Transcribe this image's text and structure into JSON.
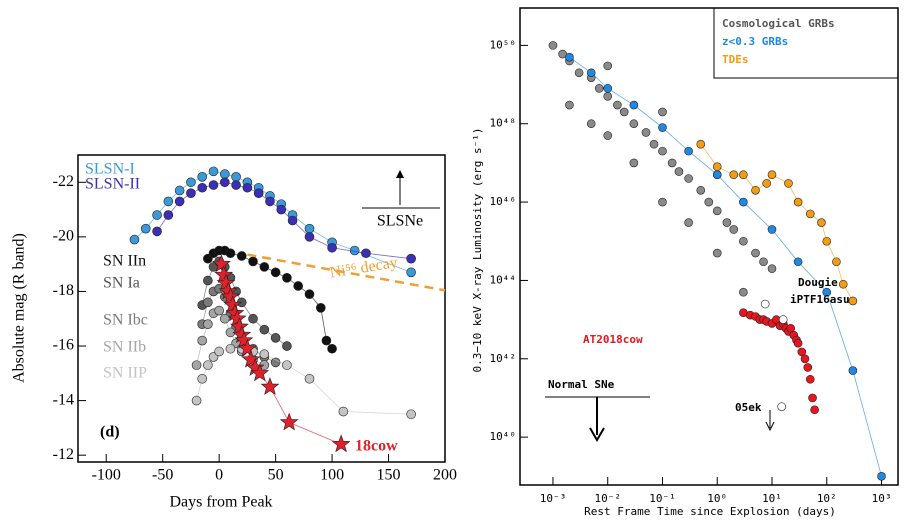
{
  "chart_data": [
    {
      "type": "line",
      "xlabel": "Days from Peak",
      "ylabel": "Absolute mag (R band)",
      "xlim": [
        -125,
        200
      ],
      "ylim": [
        -11.75,
        -23
      ],
      "xticks": [
        -100,
        -50,
        0,
        50,
        100,
        150,
        200
      ],
      "yticks": [
        -22,
        -20,
        -18,
        -16,
        -14,
        -12
      ],
      "annotations": [
        {
          "text": "SLSNe"
        },
        {
          "text": "(d)"
        }
      ],
      "series": [
        {
          "name": "SLSN-I",
          "color": "#3a9ad9",
          "marker": "circle",
          "x": [
            -75,
            -65,
            -55,
            -45,
            -35,
            -25,
            -15,
            -5,
            5,
            15,
            25,
            35,
            45,
            55,
            65,
            80,
            100,
            120,
            170
          ],
          "values": [
            -19.9,
            -20.3,
            -20.8,
            -21.3,
            -21.7,
            -22,
            -22.2,
            -22.4,
            -22.3,
            -22.2,
            -22,
            -21.8,
            -21.5,
            -21.2,
            -20.8,
            -20.3,
            -19.8,
            -19.5,
            -18.7
          ]
        },
        {
          "name": "SLSN-II",
          "color": "#3b2fb5",
          "marker": "circle",
          "x": [
            -55,
            -45,
            -35,
            -25,
            -15,
            -5,
            5,
            15,
            25,
            35,
            45,
            55,
            65,
            80,
            100,
            130,
            170
          ],
          "values": [
            -20.2,
            -20.8,
            -21.3,
            -21.6,
            -21.8,
            -21.9,
            -22,
            -21.9,
            -21.8,
            -21.6,
            -21.3,
            -21,
            -20.6,
            -20,
            -19.6,
            -19.4,
            -19.2
          ]
        },
        {
          "name": "SN IIn",
          "color": "#111111",
          "marker": "circle",
          "x": [
            -10,
            -5,
            0,
            5,
            10,
            20,
            30,
            40,
            50,
            60,
            70,
            80,
            90,
            95,
            100
          ],
          "values": [
            -19.2,
            -19.4,
            -19.5,
            -19.5,
            -19.4,
            -19.3,
            -19.1,
            -18.9,
            -18.7,
            -18.5,
            -18.2,
            -17.9,
            -17.4,
            -16.2,
            -15.9
          ]
        },
        {
          "name": "SN Ia",
          "color": "#555555",
          "marker": "circle",
          "x": [
            -15,
            -10,
            -5,
            0,
            5,
            10,
            15,
            20,
            30,
            40,
            50,
            60
          ],
          "values": [
            -17.5,
            -18.4,
            -18.9,
            -19.1,
            -18.9,
            -18.5,
            -18,
            -17.6,
            -17,
            -16.6,
            -16.3,
            -16
          ]
        },
        {
          "name": "SN Ibc",
          "color": "#7a7a7a",
          "marker": "circle",
          "x": [
            -15,
            -10,
            -5,
            0,
            5,
            10,
            15,
            20,
            30,
            40,
            50
          ],
          "values": [
            -16.8,
            -17.6,
            -18,
            -18.1,
            -17.8,
            -17.2,
            -16.7,
            -16.3,
            -15.9,
            -15.6,
            -15.4
          ]
        },
        {
          "name": "SN IIb",
          "color": "#a5a5a5",
          "marker": "circle",
          "x": [
            -20,
            -15,
            -10,
            -5,
            0,
            5,
            10,
            15,
            20,
            30,
            40
          ],
          "values": [
            -15.3,
            -16.2,
            -16.8,
            -17.2,
            -17.3,
            -17,
            -16.5,
            -16.1,
            -15.8,
            -15.5,
            -15.3
          ]
        },
        {
          "name": "SN IIP",
          "color": "#c4c4c4",
          "marker": "circle",
          "x": [
            -20,
            -15,
            -10,
            -5,
            0,
            10,
            20,
            30,
            40,
            60,
            80,
            110,
            170
          ],
          "values": [
            -14,
            -14.8,
            -15.3,
            -15.6,
            -15.8,
            -15.9,
            -15.9,
            -15.8,
            -15.7,
            -15.3,
            -14.8,
            -13.6,
            -13.5
          ]
        },
        {
          "name": "18cow",
          "color": "#e0202a",
          "marker": "star",
          "x": [
            2,
            4,
            6,
            8,
            10,
            12,
            14,
            16,
            18,
            20,
            22,
            25,
            28,
            32,
            36,
            45,
            62,
            108
          ],
          "values": [
            -19,
            -18.6,
            -18.3,
            -18,
            -17.8,
            -17.5,
            -17.2,
            -17,
            -16.7,
            -16.4,
            -16.2,
            -15.9,
            -15.5,
            -15.2,
            -15,
            -14.5,
            -13.2,
            -12.4
          ]
        },
        {
          "name": "Ni⁵⁶ decay",
          "color": "#f0a030",
          "marker": "none",
          "dash": true,
          "x": [
            25,
            200
          ],
          "values": [
            -19.35,
            -18.04
          ]
        }
      ]
    },
    {
      "type": "scatter",
      "xlog": true,
      "ylog": true,
      "xlabel": "Rest Frame Time since Explosion (days)",
      "ylabel": "0.3−10 keV X-ray Luminosity (erg s⁻¹)",
      "xlim": [
        0.00025,
        2000
      ],
      "ylim": [
        6e+38,
        9e+50
      ],
      "xticks": [
        {
          "value": 0.001,
          "label": "10⁻³"
        },
        {
          "value": 0.01,
          "label": "10⁻²"
        },
        {
          "value": 0.1,
          "label": "10⁻¹"
        },
        {
          "value": 1,
          "label": "10⁰"
        },
        {
          "value": 10,
          "label": "10¹"
        },
        {
          "value": 100,
          "label": "10²"
        },
        {
          "value": 1000,
          "label": "10³"
        }
      ],
      "yticks": [
        {
          "value": 1e+40,
          "label": "10⁴⁰"
        },
        {
          "value": 1e+42,
          "label": "10⁴²"
        },
        {
          "value": 1e+44,
          "label": "10⁴⁴"
        },
        {
          "value": 1e+46,
          "label": "10⁴⁶"
        },
        {
          "value": 1e+48,
          "label": "10⁴⁸"
        },
        {
          "value": 1e+50,
          "label": "10⁵⁰"
        }
      ],
      "legend": "upper right",
      "annotations": [
        {
          "text": "Normal SNe"
        }
      ],
      "series": [
        {
          "name": "Cosmological GRBs",
          "color": "#8a8a8a",
          "marker": "circle",
          "x": [
            0.001,
            0.0015,
            0.002,
            0.003,
            0.005,
            0.007,
            0.01,
            0.015,
            0.02,
            0.03,
            0.05,
            0.07,
            0.1,
            0.15,
            0.2,
            0.3,
            0.5,
            0.7,
            1,
            1.5,
            2,
            3,
            5,
            7,
            10,
            0.002,
            0.005,
            0.01,
            0.03,
            0.1,
            0.3,
            1,
            3,
            0.01,
            0.1,
            1
          ],
          "values": [
            1e+50,
            6e+49,
            4e+49,
            2e+49,
            1.5e+49,
            8e+48,
            5e+48,
            3e+48,
            2e+48,
            1e+48,
            6e+47,
            3e+47,
            2e+47,
            1e+47,
            6e+46,
            4e+46,
            2e+46,
            1e+46,
            6e+45,
            3e+45,
            2e+45,
            1e+45,
            5e+44,
            3e+44,
            2e+44,
            3e+48,
            1e+48,
            5e+47,
            1e+47,
            1e+46,
            3e+45,
            5e+44,
            5e+43,
            3e+49,
            2e+48,
            5e+46
          ]
        },
        {
          "name": "z<0.3 GRBs",
          "color": "#1e88e5",
          "marker": "circle",
          "line": true,
          "x": [
            0.002,
            0.005,
            0.01,
            0.03,
            0.1,
            0.3,
            1,
            3,
            10,
            30,
            100,
            300,
            1000
          ],
          "values": [
            5e+49,
            2e+49,
            8e+48,
            3e+48,
            8e+47,
            2e+47,
            5e+46,
            1e+46,
            2e+45,
            3e+44,
            5e+43,
            5e+41,
            1e+39
          ]
        },
        {
          "name": "TDEs",
          "color": "#f39c12",
          "marker": "circle",
          "line": true,
          "x": [
            0.5,
            1,
            2,
            3,
            5,
            8,
            10,
            20,
            30,
            50,
            80,
            100,
            150,
            200,
            300
          ],
          "values": [
            3e+47,
            8e+46,
            5e+46,
            5e+46,
            2e+46,
            3e+46,
            5e+46,
            3e+46,
            1e+46,
            5e+45,
            3e+45,
            1e+45,
            3e+44,
            8e+43,
            3e+43
          ]
        },
        {
          "name": "AT2018cow",
          "color": "#e8141e",
          "marker": "circle",
          "legend_entry": false,
          "x": [
            3,
            4,
            5,
            6,
            7,
            8,
            10,
            12,
            14,
            16,
            18,
            20,
            22,
            25,
            28,
            30,
            35,
            40,
            45,
            50,
            55,
            60
          ],
          "values": [
            1.5e+43,
            1.3e+43,
            1.2e+43,
            1e+43,
            1e+43,
            9e+42,
            8e+42,
            1e+43,
            7e+42,
            8e+42,
            6e+42,
            5e+42,
            6e+42,
            4e+42,
            3e+42,
            2.5e+42,
            1.5e+42,
            1e+42,
            6e+41,
            3e+41,
            1e+41,
            5e+40
          ]
        },
        {
          "name": "Dougie",
          "color": "#ffffff",
          "marker": "circle",
          "legend_entry": false,
          "x": [
            7.5
          ],
          "values": [
            2.5e+43
          ]
        },
        {
          "name": "iPTF16asu",
          "color": "#ffffff",
          "marker": "circle",
          "legend_entry": false,
          "x": [
            16
          ],
          "values": [
            1e+43
          ]
        },
        {
          "name": "05ek",
          "color": "#ffffff",
          "marker": "circle",
          "legend_entry": false,
          "x": [
            15
          ],
          "values": [
            6e+40
          ]
        }
      ]
    }
  ]
}
